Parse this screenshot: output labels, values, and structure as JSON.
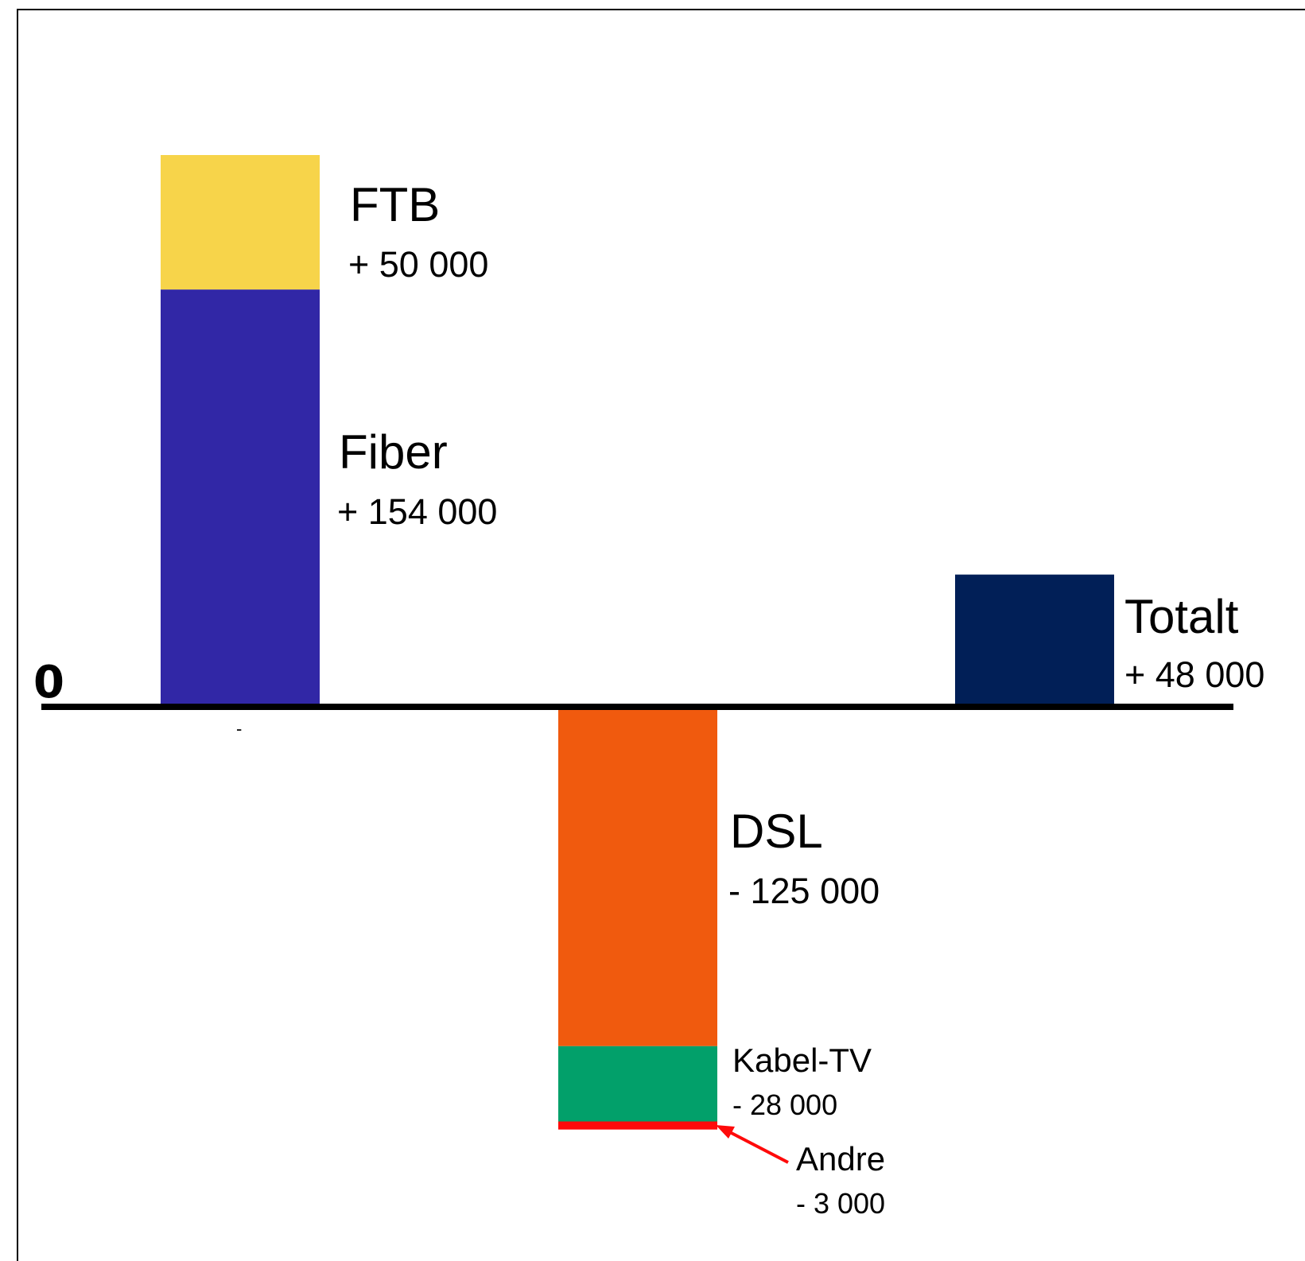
{
  "chart_data": {
    "type": "bar",
    "zero_label": "0",
    "tick_marks": [
      "-"
    ],
    "series": [
      {
        "name": "Fiber",
        "value_text": "+ 154 000",
        "value": 154000,
        "color": "#3127a6"
      },
      {
        "name": "FTB",
        "value_text": "+ 50 000",
        "value": 50000,
        "color": "#f7d44a"
      },
      {
        "name": "DSL",
        "value_text": "- 125 000",
        "value": -125000,
        "color": "#f05a0e"
      },
      {
        "name": "Kabel-TV",
        "value_text": "- 28 000",
        "value": -28000,
        "color": "#02a06a"
      },
      {
        "name": "Andre",
        "value_text": "- 3 000",
        "value": -3000,
        "color": "#ff0a0a"
      },
      {
        "name": "Totalt",
        "value_text": "+ 48 000",
        "value": 48000,
        "color": "#011f57"
      }
    ]
  }
}
